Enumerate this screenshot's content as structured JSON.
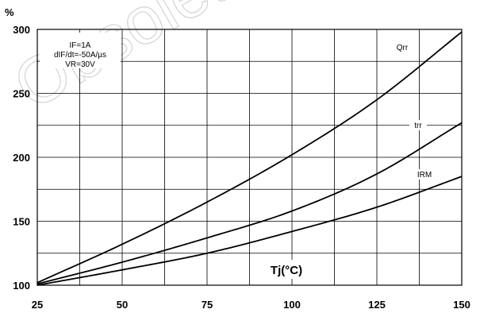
{
  "chart_data": {
    "type": "line",
    "title": "",
    "ylabel": "%",
    "xlabel": "Tj(°C)",
    "xlim": [
      25,
      150
    ],
    "ylim": [
      100,
      300
    ],
    "grid": true,
    "xticks": [
      25,
      50,
      75,
      100,
      125,
      150
    ],
    "yticks": [
      100,
      150,
      200,
      250,
      300
    ],
    "annotations": [
      "IF=1A",
      "dIF/dt=-50A/µs",
      "VR=30V"
    ],
    "watermark": "Obsolete",
    "series": [
      {
        "name": "Qrr",
        "x": [
          25,
          50,
          75,
          100,
          125,
          150
        ],
        "values": [
          102,
          132,
          165,
          202,
          245,
          298
        ]
      },
      {
        "name": "trr",
        "x": [
          25,
          50,
          75,
          100,
          125,
          150
        ],
        "values": [
          101,
          118,
          137,
          158,
          187,
          227
        ]
      },
      {
        "name": "IRM",
        "x": [
          25,
          50,
          75,
          100,
          125,
          150
        ],
        "values": [
          100,
          112,
          125,
          142,
          161,
          185
        ]
      }
    ]
  }
}
